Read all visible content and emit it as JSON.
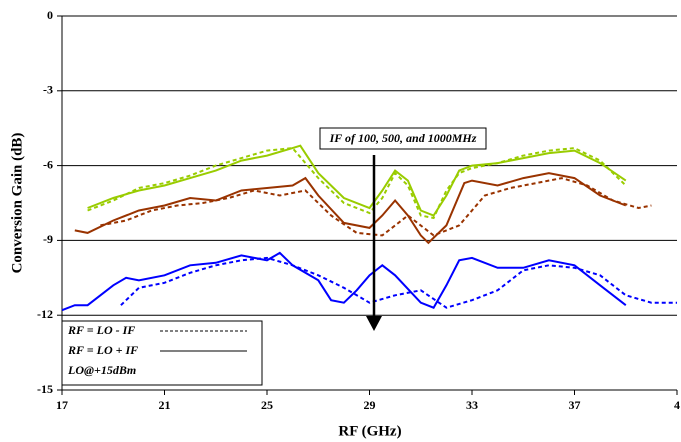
{
  "chart_data": {
    "type": "line",
    "x_label": "RF (GHz)",
    "y_label": "Conversion Gain (dB)",
    "xlim": [
      17,
      41
    ],
    "xticks": [
      17,
      21,
      25,
      29,
      33,
      37,
      {
        "value": 41,
        "label": "4"
      }
    ],
    "ylim": [
      -15,
      0
    ],
    "yticks": [
      -15,
      -12,
      -9,
      -6,
      -3,
      0
    ],
    "grid": true,
    "annotation": "IF of 100, 500, and 1000MHz",
    "legend": [
      {
        "label": "RF = LO - IF",
        "dashed": true
      },
      {
        "label": "RF = LO + IF",
        "dashed": false
      }
    ],
    "legend_note": "LO@+15dBm",
    "series": [
      {
        "color": "#99cc00",
        "dashed": false,
        "x": [
          18,
          19,
          20,
          21,
          22,
          23,
          24,
          25,
          26,
          26.3,
          27,
          28,
          29,
          29.5,
          30,
          30.5,
          31,
          31.5,
          32,
          32.5,
          33,
          34,
          35,
          36,
          37,
          38,
          39
        ],
        "values": [
          -7.7,
          -7.3,
          -7.0,
          -6.8,
          -6.5,
          -6.2,
          -5.8,
          -5.6,
          -5.3,
          -5.2,
          -6.3,
          -7.3,
          -7.7,
          -7.0,
          -6.2,
          -6.6,
          -7.8,
          -8.0,
          -7.2,
          -6.2,
          -6.0,
          -5.9,
          -5.7,
          -5.5,
          -5.4,
          -5.9,
          -6.6
        ]
      },
      {
        "color": "#99cc00",
        "dashed": true,
        "x": [
          18,
          19,
          20,
          21,
          22,
          23,
          24,
          25,
          26,
          27,
          28,
          29,
          29.5,
          30,
          30.5,
          31,
          31.5,
          32,
          32.5,
          33,
          34,
          35,
          36,
          37,
          38,
          39
        ],
        "values": [
          -7.8,
          -7.4,
          -6.9,
          -6.7,
          -6.4,
          -6.0,
          -5.7,
          -5.4,
          -5.3,
          -6.5,
          -7.5,
          -7.9,
          -7.3,
          -6.3,
          -6.8,
          -8.0,
          -8.1,
          -7.0,
          -6.3,
          -6.1,
          -5.9,
          -5.6,
          -5.4,
          -5.3,
          -5.8,
          -6.8
        ]
      },
      {
        "color": "#993300",
        "dashed": false,
        "x": [
          17.5,
          18,
          19,
          20,
          21,
          22,
          23,
          24,
          25,
          26,
          26.5,
          27,
          28,
          29,
          29.5,
          30,
          30.5,
          31,
          31.3,
          32,
          32.7,
          33,
          34,
          35,
          36,
          37,
          38,
          39
        ],
        "values": [
          -8.6,
          -8.7,
          -8.2,
          -7.8,
          -7.6,
          -7.3,
          -7.4,
          -7.0,
          -6.9,
          -6.8,
          -6.5,
          -7.2,
          -8.3,
          -8.5,
          -8.0,
          -7.4,
          -8.0,
          -8.8,
          -9.1,
          -8.4,
          -6.7,
          -6.6,
          -6.8,
          -6.5,
          -6.3,
          -6.5,
          -7.2,
          -7.6
        ]
      },
      {
        "color": "#993300",
        "dashed": true,
        "x": [
          18.5,
          19.5,
          20.5,
          21.5,
          22.5,
          23.5,
          24.5,
          25.5,
          26.5,
          27.5,
          28.5,
          29.5,
          30.5,
          31.5,
          32.5,
          33.5,
          34.5,
          35.5,
          36.5,
          37.5,
          38.5,
          39.5,
          40
        ],
        "values": [
          -8.4,
          -8.2,
          -7.8,
          -7.6,
          -7.5,
          -7.3,
          -7.0,
          -7.2,
          -7.0,
          -8.0,
          -8.7,
          -8.8,
          -8.0,
          -8.8,
          -8.4,
          -7.2,
          -6.9,
          -6.7,
          -6.5,
          -6.8,
          -7.4,
          -7.7,
          -7.6
        ]
      },
      {
        "color": "#0000ff",
        "dashed": false,
        "x": [
          17,
          17.5,
          18,
          18.5,
          19,
          19.5,
          20,
          21,
          22,
          23,
          24,
          25,
          25.5,
          26,
          27,
          27.5,
          28,
          28.5,
          29,
          29.5,
          30,
          31,
          31.5,
          32,
          32.5,
          33,
          34,
          35,
          36,
          37,
          38,
          39
        ],
        "values": [
          -11.8,
          -11.6,
          -11.6,
          -11.2,
          -10.8,
          -10.5,
          -10.6,
          -10.4,
          -10.0,
          -9.9,
          -9.6,
          -9.8,
          -9.5,
          -10.0,
          -10.6,
          -11.4,
          -11.5,
          -11.0,
          -10.4,
          -10.0,
          -10.4,
          -11.5,
          -11.7,
          -10.8,
          -9.8,
          -9.7,
          -10.1,
          -10.1,
          -9.8,
          -10.0,
          -10.8,
          -11.6
        ]
      },
      {
        "color": "#0000ff",
        "dashed": true,
        "x": [
          19.3,
          20,
          21,
          22,
          23,
          24,
          25,
          26,
          27,
          28,
          29,
          30,
          31,
          32,
          33,
          34,
          35,
          36,
          37,
          38,
          39,
          40,
          41
        ],
        "values": [
          -11.6,
          -10.9,
          -10.7,
          -10.3,
          -10.0,
          -9.8,
          -9.7,
          -10.0,
          -10.4,
          -10.9,
          -11.5,
          -11.2,
          -11.0,
          -11.7,
          -11.4,
          -11.0,
          -10.2,
          -10.0,
          -10.1,
          -10.4,
          -11.2,
          -11.5,
          -11.5
        ]
      }
    ]
  }
}
